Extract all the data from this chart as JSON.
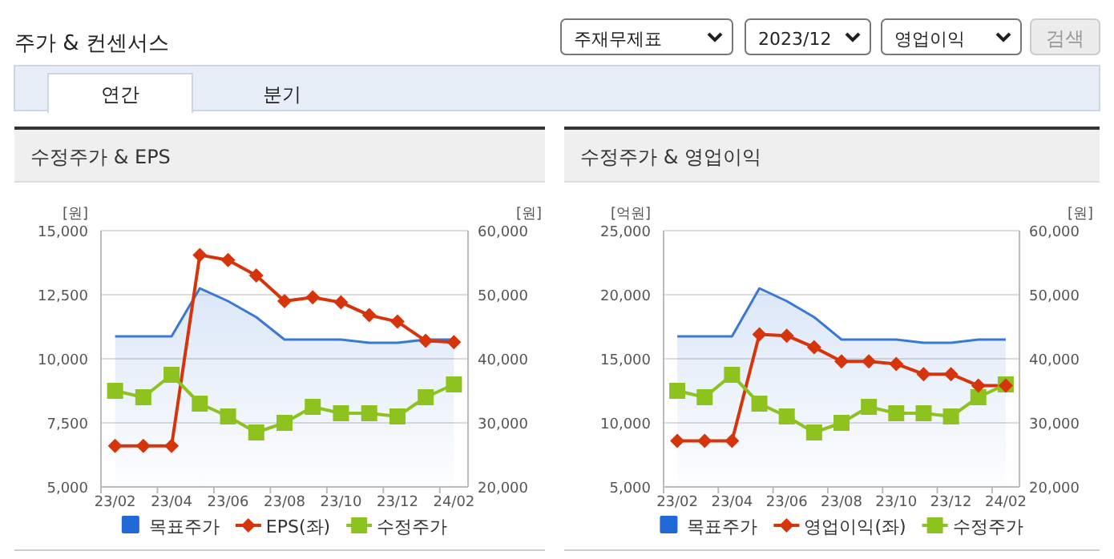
{
  "chart_data": [
    {
      "type": "other",
      "title": "주가 & 컨센서스",
      "annotations": [
        "주재무제표",
        "2023/12",
        "영업이익",
        "검색",
        "연간",
        "분기"
      ]
    },
    {
      "type": "line",
      "title": "수정주가 & EPS",
      "ylabel": "[원]",
      "y2label": "[원]",
      "categories": [
        "23/02",
        null,
        "23/04",
        null,
        "23/06",
        null,
        "23/08",
        null,
        "23/10",
        null,
        "23/12",
        null,
        "24/02"
      ],
      "ylim": [
        5000,
        15000
      ],
      "yticks": [
        {
          "value": 5000,
          "label": "5,000"
        },
        {
          "value": 7500,
          "label": "7,500"
        },
        {
          "value": 10000,
          "label": "10,000"
        },
        {
          "value": 12500,
          "label": "12,500"
        },
        {
          "value": 15000,
          "label": "15,000"
        }
      ],
      "y2lim": [
        20000,
        60000
      ],
      "y2ticks": [
        {
          "value": 20000,
          "label": "20,000"
        },
        {
          "value": 30000,
          "label": "30,000"
        },
        {
          "value": 40000,
          "label": "40,000"
        },
        {
          "value": 50000,
          "label": "50,000"
        },
        {
          "value": 60000,
          "label": "60,000"
        }
      ],
      "grid": "y",
      "legend": "bottom",
      "series": [
        {
          "name": "목표주가",
          "type": "area",
          "axis": "y2",
          "color": "#3a78d8",
          "marker": "none",
          "values": [
            43500,
            43500,
            43500,
            51000,
            49000,
            46500,
            43000,
            43000,
            43000,
            42500,
            42500,
            43000,
            43000
          ]
        },
        {
          "name": "EPS(좌)",
          "type": "line",
          "color": "#d6350b",
          "marker": "diamond",
          "values": [
            6600,
            6600,
            6600,
            14050,
            13850,
            13250,
            12250,
            12400,
            12200,
            11700,
            11450,
            10700,
            10650
          ]
        },
        {
          "name": "수정주가",
          "type": "line",
          "axis": "y2",
          "color": "#8dc21f",
          "marker": "square",
          "values": [
            35000,
            34000,
            37500,
            33000,
            31000,
            28500,
            30000,
            32500,
            31500,
            31500,
            31000,
            34000,
            36000
          ]
        }
      ]
    },
    {
      "type": "line",
      "title": "수정주가 & 영업이익",
      "ylabel": "[억원]",
      "y2label": "[원]",
      "categories": [
        "23/02",
        null,
        "23/04",
        null,
        "23/06",
        null,
        "23/08",
        null,
        "23/10",
        null,
        "23/12",
        null,
        "24/02"
      ],
      "ylim": [
        5000,
        25000
      ],
      "yticks": [
        {
          "value": 5000,
          "label": "5,000"
        },
        {
          "value": 10000,
          "label": "10,000"
        },
        {
          "value": 15000,
          "label": "15,000"
        },
        {
          "value": 20000,
          "label": "20,000"
        },
        {
          "value": 25000,
          "label": "25,000"
        }
      ],
      "y2lim": [
        20000,
        60000
      ],
      "y2ticks": [
        {
          "value": 20000,
          "label": "20,000"
        },
        {
          "value": 30000,
          "label": "30,000"
        },
        {
          "value": 40000,
          "label": "40,000"
        },
        {
          "value": 50000,
          "label": "50,000"
        },
        {
          "value": 60000,
          "label": "60,000"
        }
      ],
      "grid": "y",
      "legend": "bottom",
      "series": [
        {
          "name": "목표주가",
          "type": "area",
          "axis": "y2",
          "color": "#3a78d8",
          "marker": "none",
          "values": [
            43500,
            43500,
            43500,
            51000,
            49000,
            46500,
            43000,
            43000,
            43000,
            42500,
            42500,
            43000,
            43000
          ]
        },
        {
          "name": "영업이익(좌)",
          "type": "line",
          "color": "#d6350b",
          "marker": "diamond",
          "values": [
            8600,
            8600,
            8600,
            16900,
            16800,
            15900,
            14800,
            14800,
            14600,
            13800,
            13800,
            12900,
            12900
          ]
        },
        {
          "name": "수정주가",
          "type": "line",
          "axis": "y2",
          "color": "#8dc21f",
          "marker": "square",
          "values": [
            35000,
            34000,
            37500,
            33000,
            31000,
            28500,
            30000,
            32500,
            31500,
            31500,
            31000,
            34000,
            36000
          ]
        }
      ]
    }
  ]
}
